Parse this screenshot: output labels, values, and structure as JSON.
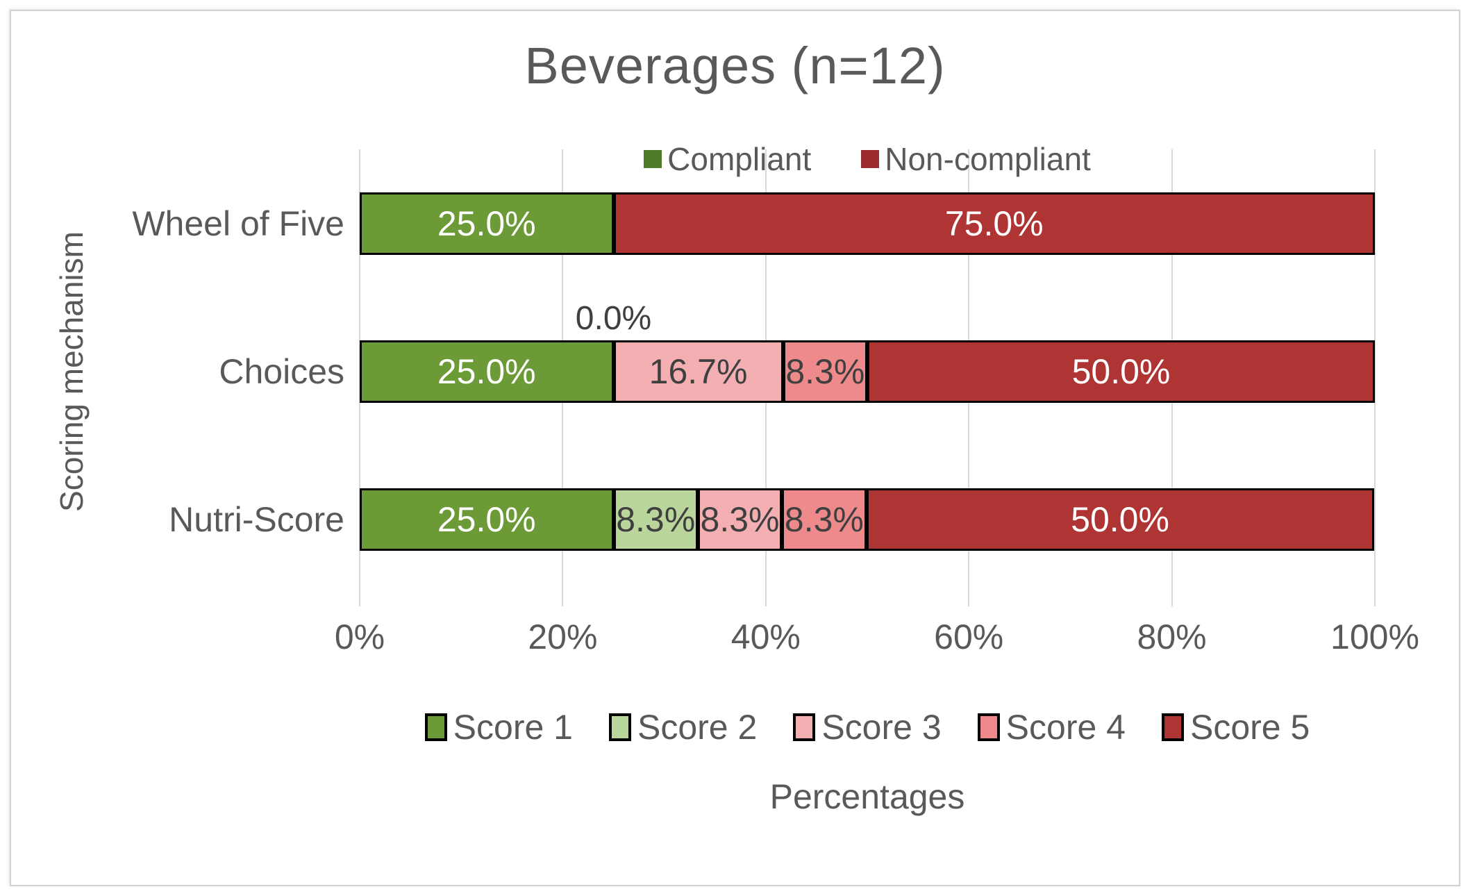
{
  "title": "Beverages (n=12)",
  "legend_top": {
    "items": [
      {
        "label": "Compliant",
        "color": "#4e7a29"
      },
      {
        "label": "Non-compliant",
        "color": "#9c2b2e"
      }
    ]
  },
  "legend_bottom": {
    "items": [
      {
        "label": "Score 1",
        "color": "#6c9a37"
      },
      {
        "label": "Score 2",
        "color": "#bbd69c"
      },
      {
        "label": "Score 3",
        "color": "#f3afb2"
      },
      {
        "label": "Score 4",
        "color": "#ee8a8c"
      },
      {
        "label": "Score 5",
        "color": "#af3434"
      }
    ]
  },
  "axis": {
    "x_title": "Percentages",
    "y_title": "Scoring mechanism"
  },
  "chart_data": {
    "type": "bar",
    "orientation": "horizontal",
    "stacked": true,
    "title": "Beverages (n=12)",
    "xlabel": "Percentages",
    "ylabel": "Scoring mechanism",
    "xlim": [
      0,
      100
    ],
    "grid": true,
    "legend_positions": [
      "top: Compliant / Non-compliant",
      "bottom: Score 1-5"
    ],
    "x_ticks": [
      {
        "value": 0,
        "label": "0%"
      },
      {
        "value": 20,
        "label": "20%"
      },
      {
        "value": 40,
        "label": "40%"
      },
      {
        "value": 60,
        "label": "60%"
      },
      {
        "value": 80,
        "label": "80%"
      },
      {
        "value": 100,
        "label": "100%"
      }
    ],
    "categories": [
      "Wheel of Five",
      "Choices",
      "Nutri-Score"
    ],
    "series_colors": {
      "Score 1": "#6c9a37",
      "Score 2": "#bbd69c",
      "Score 3": "#f3afb2",
      "Score 4": "#ee8a8c",
      "Score 5": "#af3434"
    },
    "label_colors": {
      "Score 1": "#ffffff",
      "Score 2": "#3f3f3f",
      "Score 3": "#3f3f3f",
      "Score 4": "#3f3f3f",
      "Score 5": "#ffffff"
    },
    "rows": [
      {
        "category": "Wheel of Five",
        "segments": [
          {
            "series": "Score 1",
            "value": 25.0,
            "label": "25.0%"
          },
          {
            "series": "Score 5",
            "value": 75.0,
            "label": "75.0%"
          }
        ]
      },
      {
        "category": "Choices",
        "segments": [
          {
            "series": "Score 1",
            "value": 25.0,
            "label": "25.0%"
          },
          {
            "series": "Score 2",
            "value": 0.0,
            "label": "0.0%",
            "label_position": "above"
          },
          {
            "series": "Score 3",
            "value": 16.7,
            "label": "16.7%"
          },
          {
            "series": "Score 4",
            "value": 8.3,
            "label": "8.3%"
          },
          {
            "series": "Score 5",
            "value": 50.0,
            "label": "50.0%"
          }
        ]
      },
      {
        "category": "Nutri-Score",
        "segments": [
          {
            "series": "Score 1",
            "value": 25.0,
            "label": "25.0%"
          },
          {
            "series": "Score 2",
            "value": 8.3,
            "label": "8.3%"
          },
          {
            "series": "Score 3",
            "value": 8.3,
            "label": "8.3%"
          },
          {
            "series": "Score 4",
            "value": 8.3,
            "label": "8.3%"
          },
          {
            "series": "Score 5",
            "value": 50.0,
            "label": "50.0%"
          }
        ]
      }
    ]
  }
}
